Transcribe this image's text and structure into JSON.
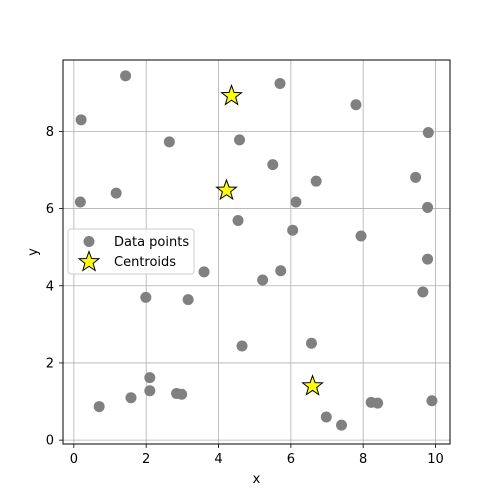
{
  "chart_data": {
    "type": "scatter",
    "title": "",
    "xlabel": "x",
    "ylabel": "y",
    "xlim": [
      -0.3,
      10.4
    ],
    "ylim": [
      -0.1,
      9.85
    ],
    "xticks": [
      0,
      2,
      4,
      6,
      8,
      10
    ],
    "yticks": [
      0,
      2,
      4,
      6,
      8
    ],
    "grid": true,
    "legend_position": "center-left",
    "series": [
      {
        "name": "Data points",
        "marker": "circle",
        "color": "#808080",
        "points": [
          [
            1.43,
            9.44
          ],
          [
            5.7,
            9.24
          ],
          [
            7.8,
            8.69
          ],
          [
            0.2,
            8.3
          ],
          [
            9.8,
            7.97
          ],
          [
            2.64,
            7.73
          ],
          [
            4.58,
            7.78
          ],
          [
            5.5,
            7.14
          ],
          [
            6.7,
            6.71
          ],
          [
            9.45,
            6.81
          ],
          [
            1.17,
            6.4
          ],
          [
            0.18,
            6.17
          ],
          [
            6.14,
            6.17
          ],
          [
            9.78,
            6.03
          ],
          [
            4.54,
            5.69
          ],
          [
            6.05,
            5.44
          ],
          [
            7.94,
            5.29
          ],
          [
            9.78,
            4.69
          ],
          [
            3.6,
            4.36
          ],
          [
            5.72,
            4.39
          ],
          [
            5.22,
            4.15
          ],
          [
            9.65,
            3.84
          ],
          [
            1.99,
            3.7
          ],
          [
            3.16,
            3.64
          ],
          [
            4.65,
            2.44
          ],
          [
            6.57,
            2.51
          ],
          [
            2.1,
            1.62
          ],
          [
            2.1,
            1.28
          ],
          [
            2.84,
            1.21
          ],
          [
            2.98,
            1.19
          ],
          [
            1.58,
            1.1
          ],
          [
            0.7,
            0.87
          ],
          [
            8.22,
            0.98
          ],
          [
            8.4,
            0.96
          ],
          [
            9.9,
            1.02
          ],
          [
            6.98,
            0.6
          ],
          [
            7.4,
            0.39
          ]
        ]
      },
      {
        "name": "Centroids",
        "marker": "star",
        "color": "#ffff00",
        "points": [
          [
            4.36,
            8.92
          ],
          [
            4.22,
            6.47
          ],
          [
            6.6,
            1.4
          ]
        ]
      }
    ]
  }
}
